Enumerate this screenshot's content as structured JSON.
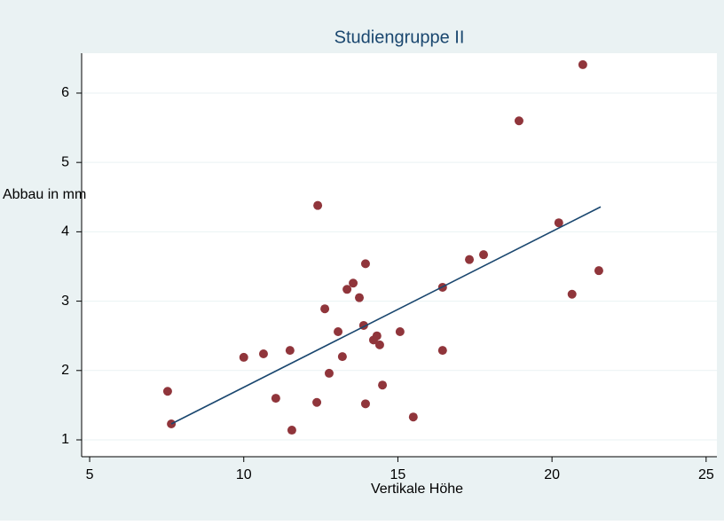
{
  "chart_data": {
    "type": "scatter",
    "title": "Studiengruppe II",
    "x_label": "Vertikale Höhe",
    "y_label": "Abbau in mm",
    "xlim": [
      4.74,
      25.35
    ],
    "ylim": [
      0.757,
      6.575
    ],
    "xticks": [
      5,
      10,
      15,
      20,
      25
    ],
    "yticks": [
      1,
      2,
      3,
      4,
      5,
      6
    ],
    "grid": true,
    "series": [
      {
        "color": "#90353b",
        "x": [
          7.53,
          7.65,
          10.0,
          10.64,
          11.04,
          11.5,
          11.56,
          12.37,
          12.4,
          12.63,
          12.77,
          13.06,
          13.2,
          13.35,
          13.55,
          13.75,
          13.89,
          13.95,
          13.95,
          14.21,
          14.32,
          14.41,
          14.5,
          15.07,
          15.5,
          16.45,
          16.45,
          17.32,
          17.78,
          18.93,
          20.22,
          20.65,
          21.0,
          21.52
        ],
        "values": [
          1.7,
          1.23,
          2.19,
          2.24,
          1.6,
          2.29,
          1.14,
          1.54,
          4.38,
          2.89,
          1.96,
          2.56,
          2.2,
          3.17,
          3.26,
          3.05,
          2.65,
          3.54,
          1.52,
          2.44,
          2.5,
          2.37,
          1.79,
          2.56,
          1.33,
          3.2,
          2.29,
          3.6,
          3.67,
          5.6,
          4.13,
          3.1,
          6.41,
          3.44
        ]
      },
      {
        "color": "#1a476f",
        "line": true,
        "x": [
          7.65,
          21.58
        ],
        "values": [
          1.23,
          4.36
        ]
      }
    ]
  }
}
